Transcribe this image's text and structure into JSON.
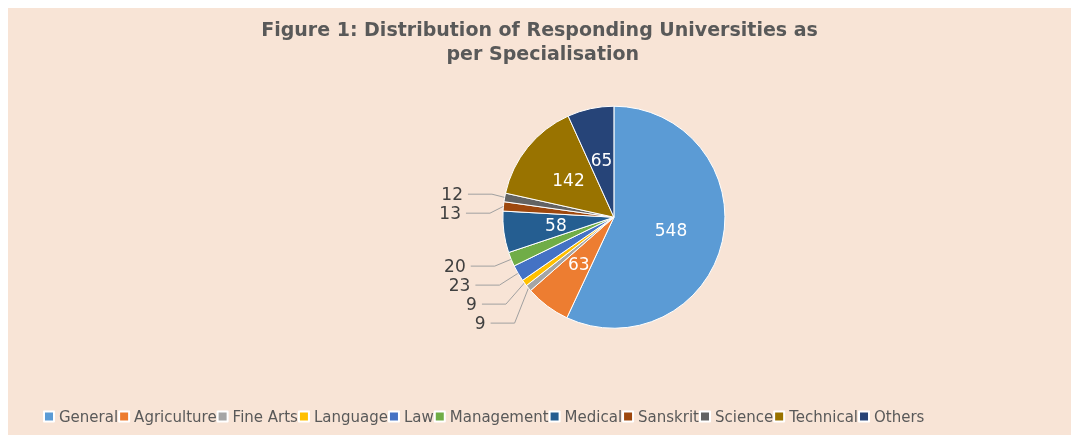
{
  "chart_data": {
    "type": "pie",
    "title": "Figure 1: Distribution of Responding Universities as per Specialisation",
    "categories": [
      "General",
      "Agriculture",
      "Fine Arts",
      "Language",
      "Law",
      "Management",
      "Medical",
      "Sanskrit",
      "Science",
      "Technical",
      "Others"
    ],
    "values": [
      548,
      63,
      9,
      9,
      23,
      20,
      58,
      13,
      12,
      142,
      65
    ],
    "colors": [
      "#5b9bd5",
      "#ed7d31",
      "#a5a5a5",
      "#ffc000",
      "#4472c4",
      "#70ad47",
      "#255e91",
      "#9e480e",
      "#636363",
      "#997300",
      "#264478"
    ],
    "data_labels": true,
    "legend": "bottom"
  }
}
